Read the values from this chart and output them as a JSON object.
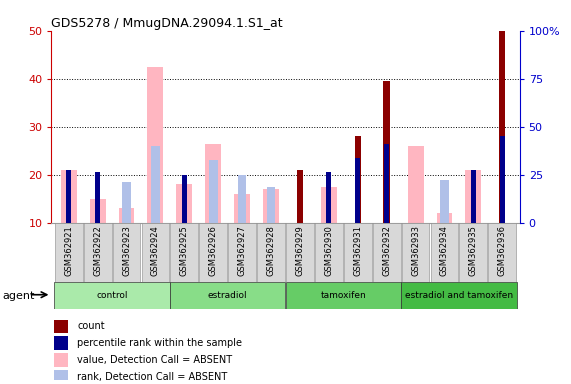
{
  "title": "GDS5278 / MmugDNA.29094.1.S1_at",
  "samples": [
    "GSM362921",
    "GSM362922",
    "GSM362923",
    "GSM362924",
    "GSM362925",
    "GSM362926",
    "GSM362927",
    "GSM362928",
    "GSM362929",
    "GSM362930",
    "GSM362931",
    "GSM362932",
    "GSM362933",
    "GSM362934",
    "GSM362935",
    "GSM362936"
  ],
  "value_absent": [
    21.0,
    15.0,
    13.0,
    42.5,
    18.0,
    26.5,
    16.0,
    17.0,
    null,
    17.5,
    null,
    null,
    26.0,
    12.0,
    21.0,
    null
  ],
  "rank_absent": [
    null,
    null,
    18.5,
    26.0,
    null,
    23.0,
    20.0,
    17.5,
    null,
    null,
    null,
    null,
    null,
    19.0,
    null,
    null
  ],
  "count_present": [
    null,
    null,
    null,
    null,
    null,
    null,
    null,
    null,
    21.0,
    null,
    28.0,
    39.5,
    null,
    null,
    null,
    50.0
  ],
  "rank_present": [
    21.0,
    20.5,
    null,
    null,
    20.0,
    null,
    null,
    null,
    null,
    20.5,
    23.5,
    26.5,
    null,
    null,
    21.0,
    28.0
  ],
  "ylim_left": [
    10,
    50
  ],
  "ylim_right": [
    0,
    100
  ],
  "left_ticks": [
    10,
    20,
    30,
    40,
    50
  ],
  "right_ticks": [
    0,
    25,
    50,
    75,
    100
  ],
  "color_count": "#8B0000",
  "color_rank": "#00008B",
  "color_value_absent": "#FFB6C1",
  "color_rank_absent": "#B0C0E8",
  "ylabel_left_color": "#CC0000",
  "ylabel_right_color": "#0000CC",
  "group_info": [
    {
      "label": "control",
      "start": 0,
      "end": 3,
      "color": "#AAEAAA"
    },
    {
      "label": "estradiol",
      "start": 4,
      "end": 7,
      "color": "#88DD88"
    },
    {
      "label": "tamoxifen",
      "start": 8,
      "end": 11,
      "color": "#66CC66"
    },
    {
      "label": "estradiol and tamoxifen",
      "start": 12,
      "end": 15,
      "color": "#44BB44"
    }
  ],
  "legend_items": [
    {
      "color": "#8B0000",
      "label": "count"
    },
    {
      "color": "#00008B",
      "label": "percentile rank within the sample"
    },
    {
      "color": "#FFB6C1",
      "label": "value, Detection Call = ABSENT"
    },
    {
      "color": "#B0C0E8",
      "label": "rank, Detection Call = ABSENT"
    }
  ]
}
